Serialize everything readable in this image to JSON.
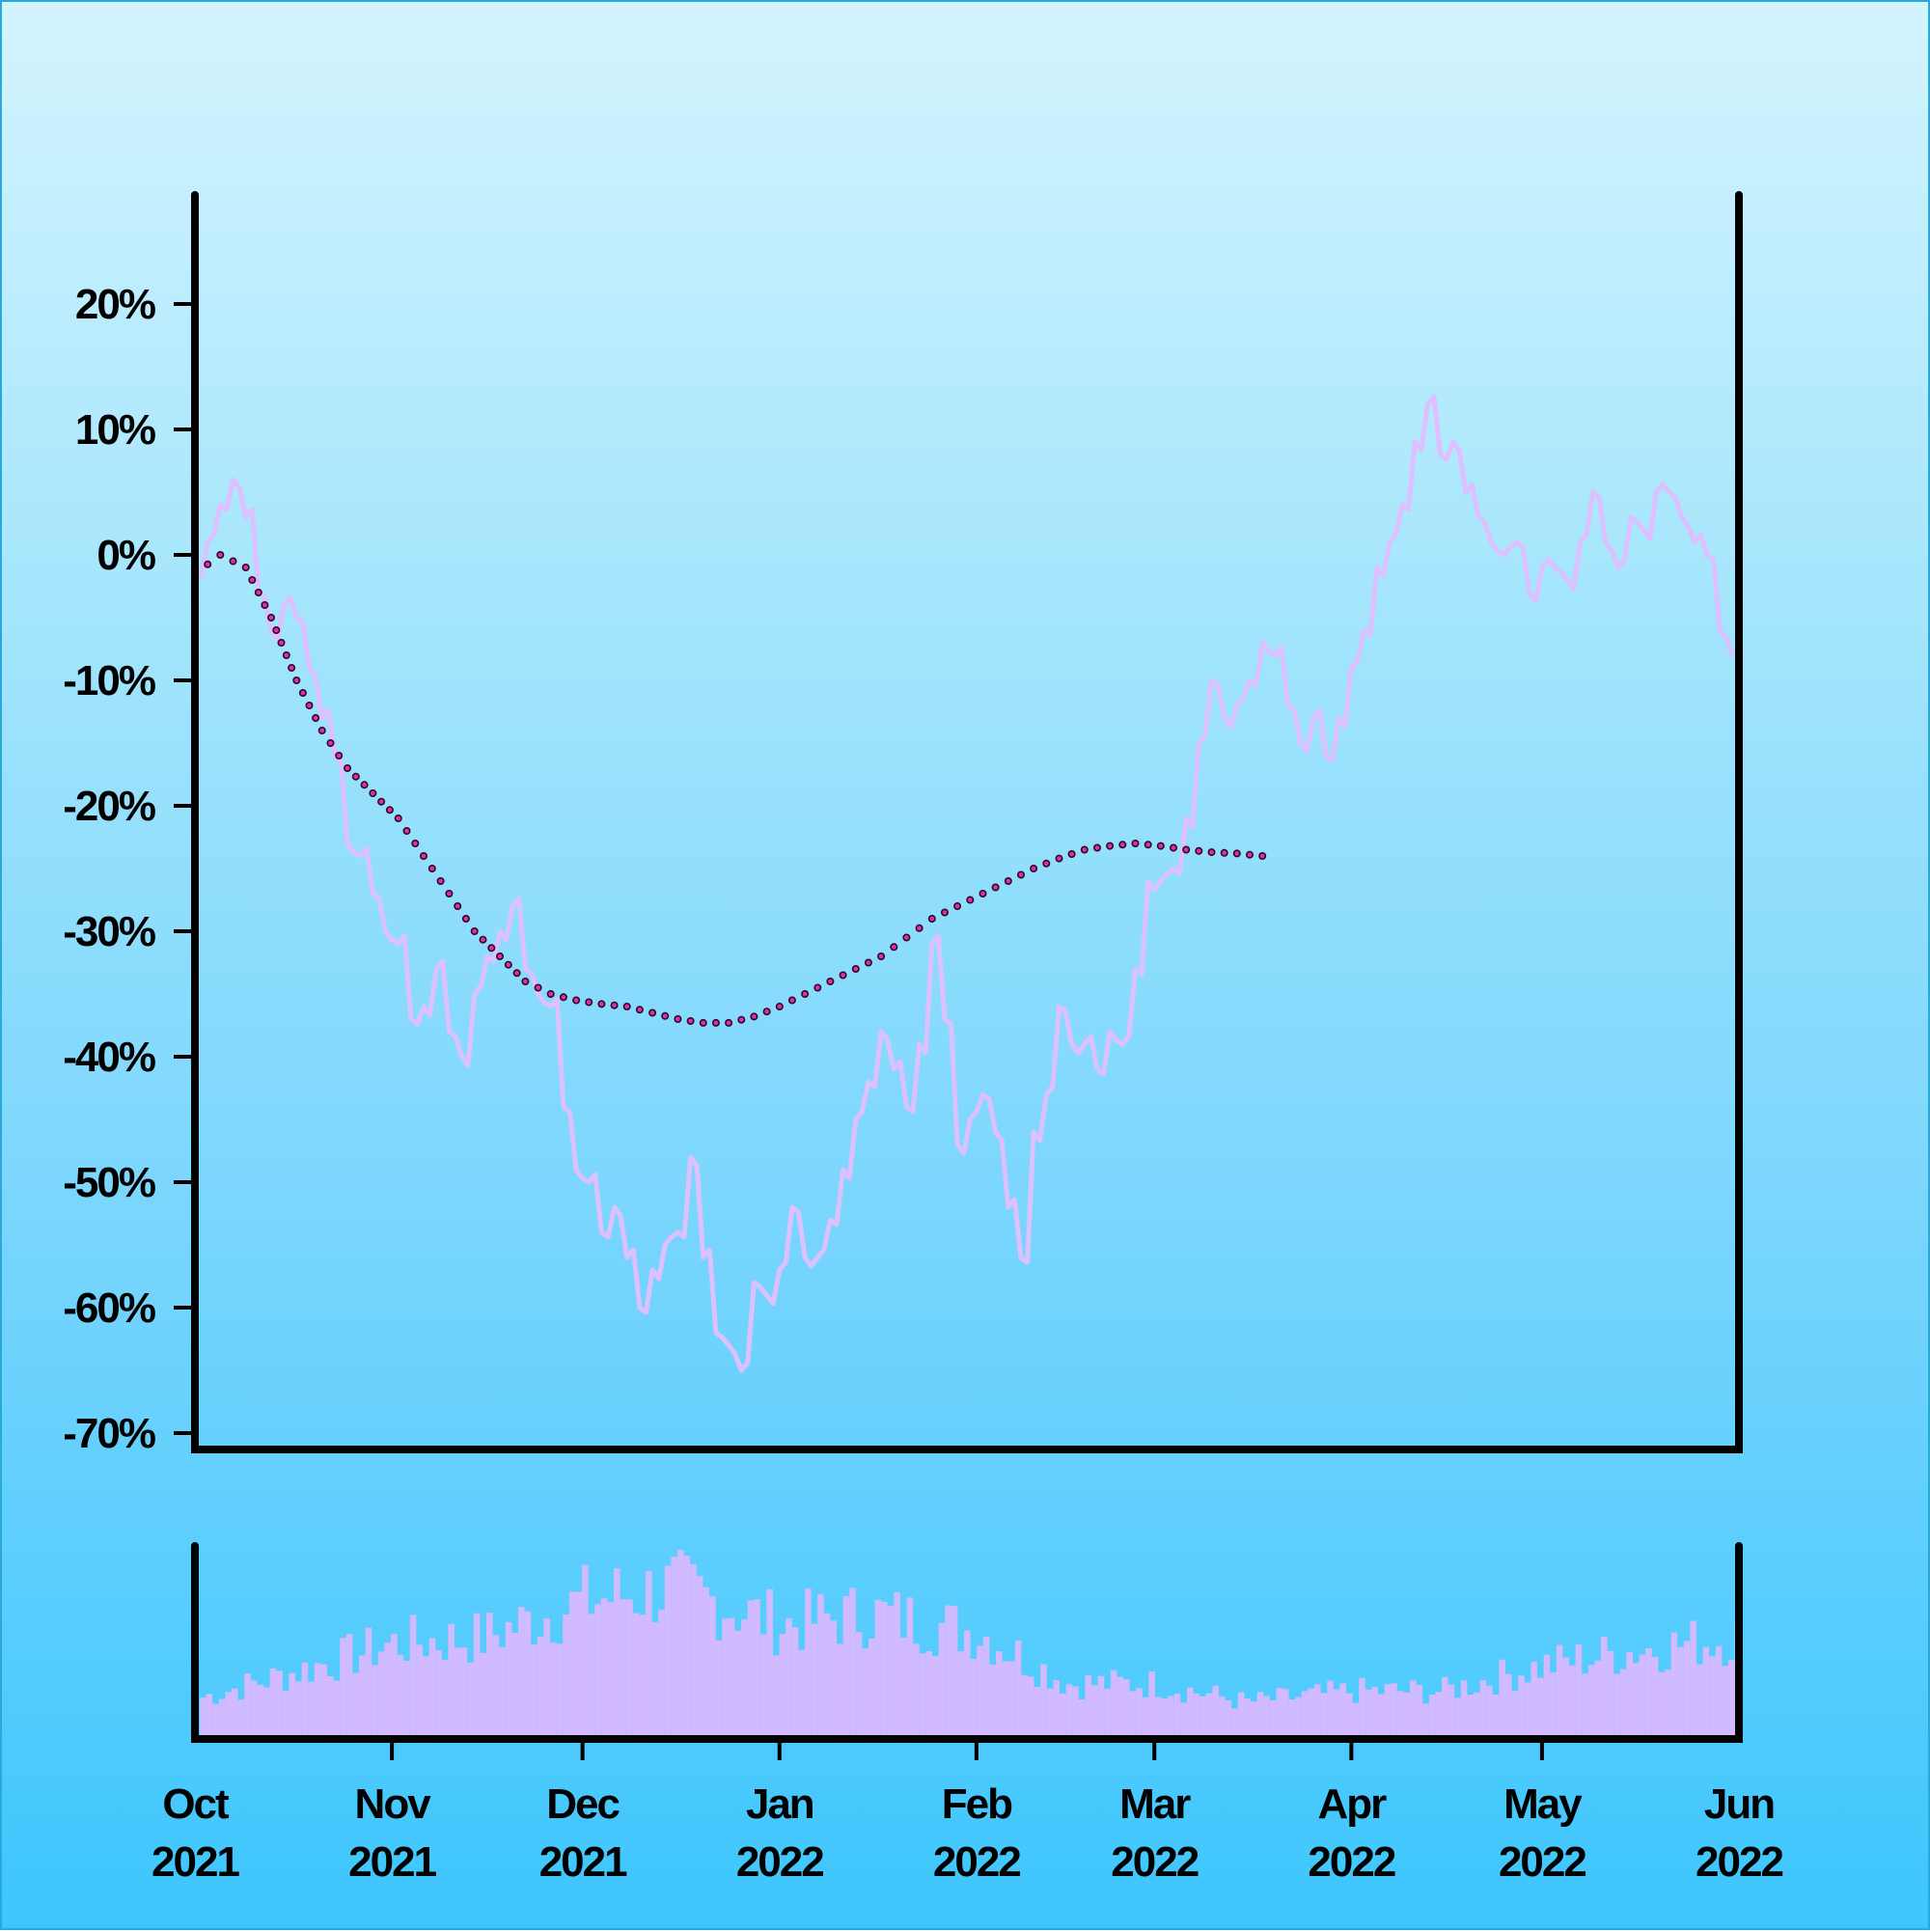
{
  "colors": {
    "price_line": "#dcc0ff",
    "moving_average_fill": "#e0309f",
    "moving_average_stroke": "#2a0a2a",
    "volume_bars": "#d1baff",
    "axis": "#000000"
  },
  "chart_data": [
    {
      "type": "line",
      "title": "",
      "xlabel": "",
      "ylabel": "",
      "y_unit": "%",
      "ylim": [
        -71,
        29
      ],
      "xlim": [
        "2021-10-01",
        "2022-06-01"
      ],
      "y_ticks": [
        "20%",
        "10%",
        "0%",
        "-10%",
        "-20%",
        "-30%",
        "-40%",
        "-50%",
        "-60%",
        "-70%"
      ],
      "y_tick_values": [
        20,
        10,
        0,
        -10,
        -20,
        -30,
        -40,
        -50,
        -60,
        -70
      ],
      "grid": false,
      "series": [
        {
          "style": "solid line",
          "points": [
            [
              "2021-10-01",
              -1
            ],
            [
              "2021-10-03",
              1
            ],
            [
              "2021-10-05",
              4
            ],
            [
              "2021-10-07",
              6
            ],
            [
              "2021-10-09",
              3
            ],
            [
              "2021-10-11",
              -3
            ],
            [
              "2021-10-13",
              -6
            ],
            [
              "2021-10-15",
              -4
            ],
            [
              "2021-10-17",
              -5
            ],
            [
              "2021-10-19",
              -9
            ],
            [
              "2021-10-21",
              -13
            ],
            [
              "2021-10-23",
              -16
            ],
            [
              "2021-10-25",
              -23
            ],
            [
              "2021-10-27",
              -24
            ],
            [
              "2021-10-29",
              -27
            ],
            [
              "2021-10-31",
              -30
            ],
            [
              "2021-11-02",
              -31
            ],
            [
              "2021-11-04",
              -37
            ],
            [
              "2021-11-06",
              -36
            ],
            [
              "2021-11-08",
              -33
            ],
            [
              "2021-11-10",
              -38
            ],
            [
              "2021-11-12",
              -40
            ],
            [
              "2021-11-14",
              -35
            ],
            [
              "2021-11-16",
              -32
            ],
            [
              "2021-11-18",
              -30
            ],
            [
              "2021-11-20",
              -28
            ],
            [
              "2021-11-22",
              -33
            ],
            [
              "2021-11-24",
              -35
            ],
            [
              "2021-11-26",
              -36
            ],
            [
              "2021-11-28",
              -44
            ],
            [
              "2021-11-30",
              -49
            ],
            [
              "2021-12-02",
              -50
            ],
            [
              "2021-12-04",
              -54
            ],
            [
              "2021-12-06",
              -52
            ],
            [
              "2021-12-08",
              -56
            ],
            [
              "2021-12-10",
              -60
            ],
            [
              "2021-12-12",
              -57
            ],
            [
              "2021-12-14",
              -55
            ],
            [
              "2021-12-16",
              -54
            ],
            [
              "2021-12-18",
              -48
            ],
            [
              "2021-12-20",
              -56
            ],
            [
              "2021-12-22",
              -62
            ],
            [
              "2021-12-24",
              -63
            ],
            [
              "2021-12-26",
              -65
            ],
            [
              "2021-12-28",
              -58
            ],
            [
              "2021-12-30",
              -59
            ],
            [
              "2022-01-01",
              -57
            ],
            [
              "2022-01-03",
              -52
            ],
            [
              "2022-01-05",
              -56
            ],
            [
              "2022-01-07",
              -56
            ],
            [
              "2022-01-09",
              -53
            ],
            [
              "2022-01-11",
              -49
            ],
            [
              "2022-01-13",
              -45
            ],
            [
              "2022-01-15",
              -42
            ],
            [
              "2022-01-17",
              -38
            ],
            [
              "2022-01-19",
              -41
            ],
            [
              "2022-01-21",
              -44
            ],
            [
              "2022-01-23",
              -39
            ],
            [
              "2022-01-25",
              -31
            ],
            [
              "2022-01-27",
              -37
            ],
            [
              "2022-01-29",
              -47
            ],
            [
              "2022-01-31",
              -45
            ],
            [
              "2022-02-02",
              -43
            ],
            [
              "2022-02-04",
              -46
            ],
            [
              "2022-02-06",
              -52
            ],
            [
              "2022-02-08",
              -56
            ],
            [
              "2022-02-10",
              -46
            ],
            [
              "2022-02-12",
              -43
            ],
            [
              "2022-02-14",
              -36
            ],
            [
              "2022-02-16",
              -39
            ],
            [
              "2022-02-18",
              -39
            ],
            [
              "2022-02-20",
              -41
            ],
            [
              "2022-02-22",
              -38
            ],
            [
              "2022-02-24",
              -39
            ],
            [
              "2022-02-26",
              -33
            ],
            [
              "2022-02-28",
              -26
            ],
            [
              "2022-03-02",
              -26
            ],
            [
              "2022-03-04",
              -25
            ],
            [
              "2022-03-06",
              -21
            ],
            [
              "2022-03-08",
              -15
            ],
            [
              "2022-03-10",
              -10
            ],
            [
              "2022-03-12",
              -13
            ],
            [
              "2022-03-14",
              -12
            ],
            [
              "2022-03-16",
              -10
            ],
            [
              "2022-03-18",
              -7
            ],
            [
              "2022-03-20",
              -8
            ],
            [
              "2022-03-22",
              -12
            ],
            [
              "2022-03-24",
              -15
            ],
            [
              "2022-03-26",
              -13
            ],
            [
              "2022-03-28",
              -16
            ],
            [
              "2022-03-30",
              -13
            ],
            [
              "2022-04-01",
              -9
            ],
            [
              "2022-04-03",
              -6
            ],
            [
              "2022-04-05",
              -1
            ],
            [
              "2022-04-07",
              1
            ],
            [
              "2022-04-09",
              4
            ],
            [
              "2022-04-11",
              9
            ],
            [
              "2022-04-13",
              12
            ],
            [
              "2022-04-15",
              8
            ],
            [
              "2022-04-17",
              9
            ],
            [
              "2022-04-19",
              5
            ],
            [
              "2022-04-21",
              3
            ],
            [
              "2022-04-23",
              1
            ],
            [
              "2022-04-25",
              0
            ],
            [
              "2022-04-27",
              1
            ],
            [
              "2022-04-29",
              -3
            ],
            [
              "2022-05-01",
              -1
            ],
            [
              "2022-05-03",
              -1
            ],
            [
              "2022-05-05",
              -2
            ],
            [
              "2022-05-07",
              1
            ],
            [
              "2022-05-09",
              5
            ],
            [
              "2022-05-11",
              1
            ],
            [
              "2022-05-13",
              -1
            ],
            [
              "2022-05-15",
              3
            ],
            [
              "2022-05-17",
              2
            ],
            [
              "2022-05-19",
              5
            ],
            [
              "2022-05-21",
              5
            ],
            [
              "2022-05-23",
              3
            ],
            [
              "2022-05-25",
              1
            ],
            [
              "2022-05-27",
              0
            ],
            [
              "2022-05-29",
              -6
            ],
            [
              "2022-05-31",
              -8
            ]
          ]
        },
        {
          "style": "dotted line (moving average)",
          "points": [
            [
              "2021-10-01",
              -1.5
            ],
            [
              "2021-10-05",
              0
            ],
            [
              "2021-10-09",
              -1
            ],
            [
              "2021-10-13",
              -5
            ],
            [
              "2021-10-17",
              -10
            ],
            [
              "2021-10-21",
              -14
            ],
            [
              "2021-10-25",
              -17
            ],
            [
              "2021-10-29",
              -19
            ],
            [
              "2021-11-02",
              -21
            ],
            [
              "2021-11-06",
              -24
            ],
            [
              "2021-11-10",
              -27
            ],
            [
              "2021-11-14",
              -30
            ],
            [
              "2021-11-18",
              -32
            ],
            [
              "2021-11-22",
              -34
            ],
            [
              "2021-11-26",
              -35
            ],
            [
              "2021-11-30",
              -35.5
            ],
            [
              "2021-12-04",
              -35.8
            ],
            [
              "2021-12-08",
              -36
            ],
            [
              "2021-12-12",
              -36.5
            ],
            [
              "2021-12-16",
              -37
            ],
            [
              "2021-12-20",
              -37.3
            ],
            [
              "2021-12-24",
              -37.3
            ],
            [
              "2021-12-28",
              -36.8
            ],
            [
              "2022-01-01",
              -36
            ],
            [
              "2022-01-05",
              -35
            ],
            [
              "2022-01-09",
              -34
            ],
            [
              "2022-01-13",
              -33
            ],
            [
              "2022-01-17",
              -32
            ],
            [
              "2022-01-21",
              -30.5
            ],
            [
              "2022-01-25",
              -29
            ],
            [
              "2022-01-29",
              -28
            ],
            [
              "2022-02-02",
              -27
            ],
            [
              "2022-02-06",
              -26
            ],
            [
              "2022-02-10",
              -25
            ],
            [
              "2022-02-14",
              -24.2
            ],
            [
              "2022-02-18",
              -23.5
            ],
            [
              "2022-02-22",
              -23.2
            ],
            [
              "2022-02-26",
              -23
            ],
            [
              "2022-03-02",
              -23.2
            ],
            [
              "2022-03-06",
              -23.5
            ],
            [
              "2022-03-10",
              -23.7
            ],
            [
              "2022-03-14",
              -23.8
            ],
            [
              "2022-03-18",
              -24
            ]
          ]
        }
      ]
    },
    {
      "type": "bar",
      "title": "",
      "x_ticks": [
        "Oct\n2021",
        "Nov\n2021",
        "Dec\n2021",
        "Jan\n2022",
        "Feb\n2022",
        "Mar\n2022",
        "Apr\n2022",
        "May\n2022",
        "Jun\n2022"
      ],
      "x_tick_lines": [
        [
          "Oct",
          "2021"
        ],
        [
          "Nov",
          "2021"
        ],
        [
          "Dec",
          "2021"
        ],
        [
          "Jan",
          "2022"
        ],
        [
          "Feb",
          "2022"
        ],
        [
          "Mar",
          "2022"
        ],
        [
          "Apr",
          "2022"
        ],
        [
          "May",
          "2022"
        ],
        [
          "Jun",
          "2022"
        ]
      ],
      "x_tick_values": [
        "2021-10-01",
        "2021-11-01",
        "2021-12-01",
        "2022-01-01",
        "2022-02-01",
        "2022-03-01",
        "2022-04-01",
        "2022-05-01",
        "2022-06-01"
      ],
      "ylim": [
        0,
        1
      ],
      "y_ticks": [],
      "grid": false,
      "series": [
        {
          "style": "volume bars (relative)",
          "envelope": [
            [
              "2021-10-01",
              0.22
            ],
            [
              "2021-10-15",
              0.35
            ],
            [
              "2021-11-01",
              0.52
            ],
            [
              "2021-11-15",
              0.55
            ],
            [
              "2021-12-01",
              0.75
            ],
            [
              "2021-12-15",
              0.82
            ],
            [
              "2022-01-01",
              0.62
            ],
            [
              "2022-01-15",
              0.68
            ],
            [
              "2022-02-01",
              0.58
            ],
            [
              "2022-02-15",
              0.3
            ],
            [
              "2022-03-01",
              0.3
            ],
            [
              "2022-03-15",
              0.2
            ],
            [
              "2022-04-01",
              0.26
            ],
            [
              "2022-04-15",
              0.26
            ],
            [
              "2022-05-01",
              0.4
            ],
            [
              "2022-05-15",
              0.48
            ],
            [
              "2022-05-31",
              0.55
            ]
          ]
        }
      ]
    }
  ]
}
